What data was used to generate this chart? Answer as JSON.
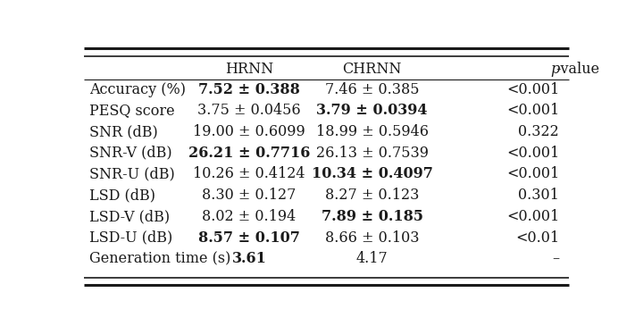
{
  "rows": [
    {
      "metric": "Accuracy (%)",
      "hrnn": "7.52 ± 0.388",
      "hrnn_bold": true,
      "chrnn": "7.46 ± 0.385",
      "chrnn_bold": false,
      "pvalue": "<0.001"
    },
    {
      "metric": "PESQ score",
      "hrnn": "3.75 ± 0.0456",
      "hrnn_bold": false,
      "chrnn": "3.79 ± 0.0394",
      "chrnn_bold": true,
      "pvalue": "<0.001"
    },
    {
      "metric": "SNR (dB)",
      "hrnn": "19.00 ± 0.6099",
      "hrnn_bold": false,
      "chrnn": "18.99 ± 0.5946",
      "chrnn_bold": false,
      "pvalue": "0.322"
    },
    {
      "metric": "SNR-V (dB)",
      "hrnn": "26.21 ± 0.7716",
      "hrnn_bold": true,
      "chrnn": "26.13 ± 0.7539",
      "chrnn_bold": false,
      "pvalue": "<0.001"
    },
    {
      "metric": "SNR-U (dB)",
      "hrnn": "10.26 ± 0.4124",
      "hrnn_bold": false,
      "chrnn": "10.34 ± 0.4097",
      "chrnn_bold": true,
      "pvalue": "<0.001"
    },
    {
      "metric": "LSD (dB)",
      "hrnn": "8.30 ± 0.127",
      "hrnn_bold": false,
      "chrnn": "8.27 ± 0.123",
      "chrnn_bold": false,
      "pvalue": "0.301"
    },
    {
      "metric": "LSD-V (dB)",
      "hrnn": "8.02 ± 0.194",
      "hrnn_bold": false,
      "chrnn": "7.89 ± 0.185",
      "chrnn_bold": true,
      "pvalue": "<0.001"
    },
    {
      "metric": "LSD-U (dB)",
      "hrnn": "8.57 ± 0.107",
      "hrnn_bold": true,
      "chrnn": "8.66 ± 0.103",
      "chrnn_bold": false,
      "pvalue": "<0.01"
    },
    {
      "metric": "Generation time (s)",
      "hrnn": "3.61",
      "hrnn_bold": true,
      "chrnn": "4.17",
      "chrnn_bold": false,
      "pvalue": "–"
    }
  ],
  "col_headers": [
    "",
    "HRNN",
    "CHRNN",
    "p-value"
  ],
  "bg_color": "#ffffff",
  "text_color": "#1a1a1a",
  "font_size": 11.5
}
